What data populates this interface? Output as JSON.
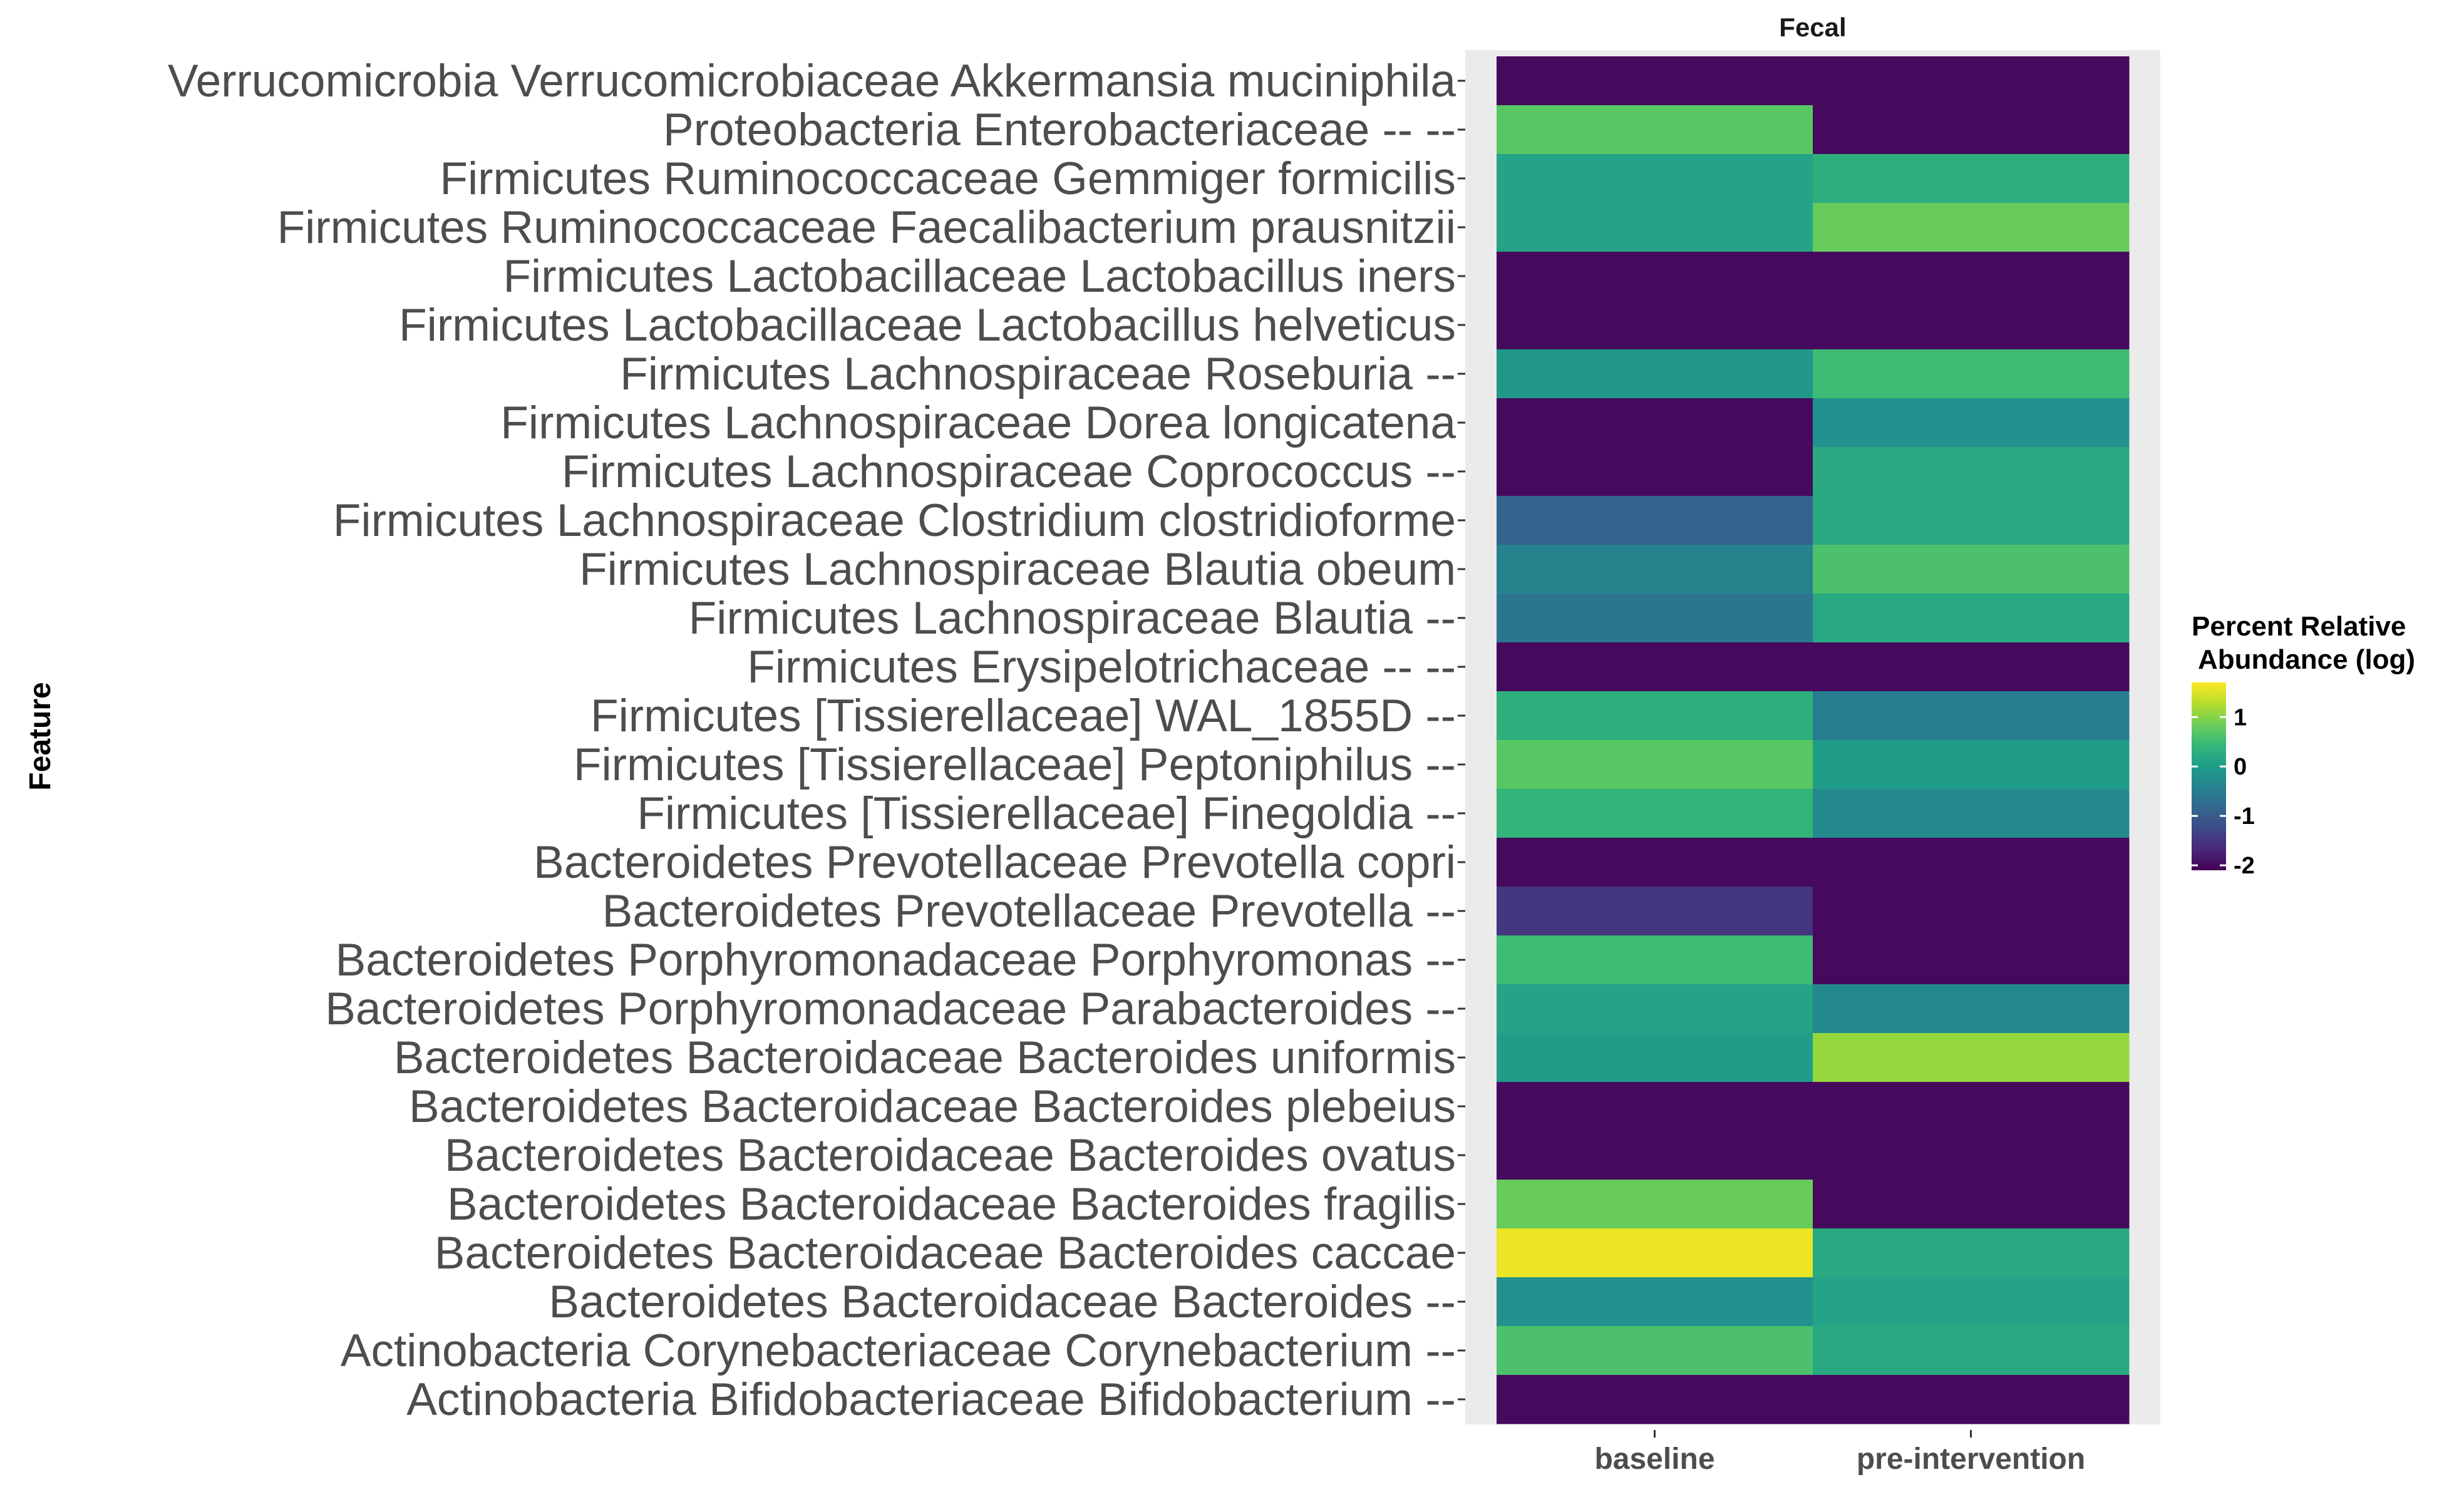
{
  "chart_data": {
    "type": "heatmap",
    "facet_title": "Fecal",
    "ylabel": "Feature",
    "xlabel": "",
    "columns": [
      "baseline",
      "pre-intervention"
    ],
    "rows": [
      "Verrucomicrobia Verrucomicrobiaceae Akkermansia muciniphila",
      "Proteobacteria Enterobacteriaceae -- --",
      "Firmicutes Ruminococcaceae Gemmiger formicilis",
      "Firmicutes Ruminococcaceae Faecalibacterium prausnitzii",
      "Firmicutes Lactobacillaceae Lactobacillus iners",
      "Firmicutes Lactobacillaceae Lactobacillus helveticus",
      "Firmicutes Lachnospiraceae Roseburia --",
      "Firmicutes Lachnospiraceae Dorea longicatena",
      "Firmicutes Lachnospiraceae Coprococcus --",
      "Firmicutes Lachnospiraceae Clostridium clostridioforme",
      "Firmicutes Lachnospiraceae Blautia obeum",
      "Firmicutes Lachnospiraceae Blautia --",
      "Firmicutes Erysipelotrichaceae -- --",
      "Firmicutes [Tissierellaceae] WAL_1855D --",
      "Firmicutes [Tissierellaceae] Peptoniphilus --",
      "Firmicutes [Tissierellaceae] Finegoldia --",
      "Bacteroidetes Prevotellaceae Prevotella copri",
      "Bacteroidetes Prevotellaceae Prevotella --",
      "Bacteroidetes Porphyromonadaceae Porphyromonas --",
      "Bacteroidetes Porphyromonadaceae Parabacteroides --",
      "Bacteroidetes Bacteroidaceae Bacteroides uniformis",
      "Bacteroidetes Bacteroidaceae Bacteroides plebeius",
      "Bacteroidetes Bacteroidaceae Bacteroides ovatus",
      "Bacteroidetes Bacteroidaceae Bacteroides fragilis",
      "Bacteroidetes Bacteroidaceae Bacteroides caccae",
      "Bacteroidetes Bacteroidaceae Bacteroides --",
      "Actinobacteria Corynebacteriaceae Corynebacterium --",
      "Actinobacteria Bifidobacteriaceae Bifidobacterium --"
    ],
    "values": [
      [
        -2.0,
        -2.0
      ],
      [
        0.7,
        -2.0
      ],
      [
        0.1,
        0.3
      ],
      [
        0.1,
        0.8
      ],
      [
        -2.0,
        -2.0
      ],
      [
        -2.0,
        -2.0
      ],
      [
        -0.1,
        0.5
      ],
      [
        -2.0,
        -0.2
      ],
      [
        -2.0,
        0.2
      ],
      [
        -0.9,
        0.2
      ],
      [
        -0.4,
        0.6
      ],
      [
        -0.6,
        0.2
      ],
      [
        -2.0,
        -2.0
      ],
      [
        0.3,
        -0.5
      ],
      [
        0.7,
        0.0
      ],
      [
        0.4,
        -0.3
      ],
      [
        -2.0,
        -2.0
      ],
      [
        -1.5,
        -2.0
      ],
      [
        0.5,
        -2.0
      ],
      [
        0.1,
        -0.3
      ],
      [
        0.0,
        1.1
      ],
      [
        -2.0,
        -2.0
      ],
      [
        -2.0,
        -2.0
      ],
      [
        0.8,
        -2.0
      ],
      [
        1.6,
        0.2
      ],
      [
        -0.2,
        0.1
      ],
      [
        0.6,
        0.2
      ],
      [
        -2.0,
        -2.0
      ]
    ],
    "legend": {
      "title_line1": "Percent Relative",
      "title_line2": "Abundance (log)",
      "position": "right",
      "ticks": [
        1,
        0,
        -1,
        -2
      ],
      "tick_labels": [
        "1",
        "0",
        "-1",
        "-2"
      ],
      "range": [
        -2.1,
        1.7
      ],
      "colormap": "viridis"
    }
  }
}
